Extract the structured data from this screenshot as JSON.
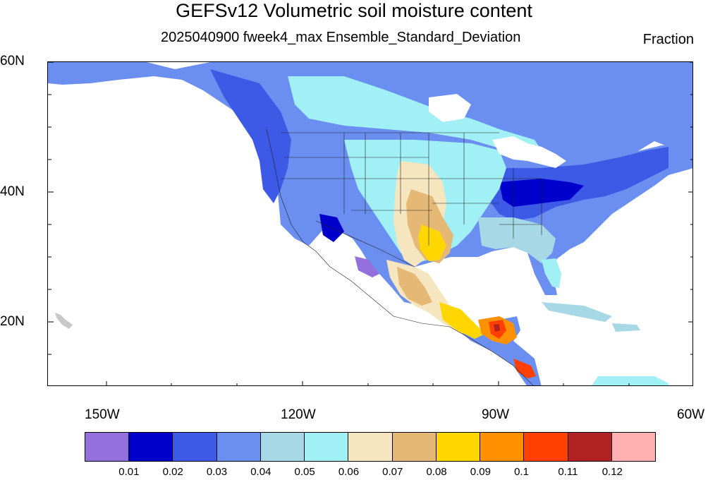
{
  "header": {
    "title": "GEFSv12 Volumetric soil moisture content",
    "subtitle": "2025040900 fweek4_max Ensemble_Standard_Deviation",
    "units": "Fraction"
  },
  "axes": {
    "lat_labels": [
      "60N",
      "40N",
      "20N"
    ],
    "lon_labels": [
      "150W",
      "120W",
      "90W",
      "60W"
    ]
  },
  "colorbar": {
    "colors": [
      "#9370db",
      "#0000cd",
      "#3c5ae6",
      "#6b8ff0",
      "#a6d8e6",
      "#a0f0f5",
      "#f5e6bf",
      "#e6b876",
      "#ffd700",
      "#ff9100",
      "#ff4000",
      "#b22222",
      "#ffb0b0"
    ],
    "labels": [
      "0.01",
      "0.02",
      "0.03",
      "0.04",
      "0.05",
      "0.06",
      "0.07",
      "0.08",
      "0.09",
      "0.1",
      "0.11",
      "0.12"
    ]
  }
}
